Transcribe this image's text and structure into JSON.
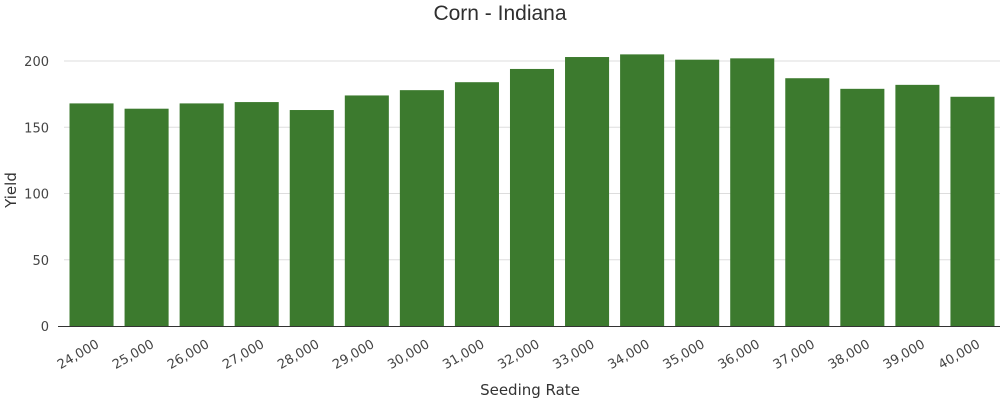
{
  "chart_data": {
    "type": "bar",
    "title": "Corn - Indiana",
    "xlabel": "Seeding Rate",
    "ylabel": "Yield",
    "categories": [
      "24,000",
      "25,000",
      "26,000",
      "27,000",
      "28,000",
      "29,000",
      "30,000",
      "31,000",
      "32,000",
      "33,000",
      "34,000",
      "35,000",
      "36,000",
      "37,000",
      "38,000",
      "39,000",
      "40,000"
    ],
    "values": [
      168,
      164,
      168,
      169,
      163,
      174,
      178,
      184,
      194,
      203,
      205,
      201,
      202,
      187,
      179,
      182,
      173
    ],
    "ylim": [
      0,
      200
    ],
    "yticks": [
      0,
      50,
      100,
      150,
      200
    ],
    "grid": true,
    "colors": {
      "bar": "#3c7a2e",
      "grid": "#dddddd",
      "axis": "#333333"
    }
  }
}
